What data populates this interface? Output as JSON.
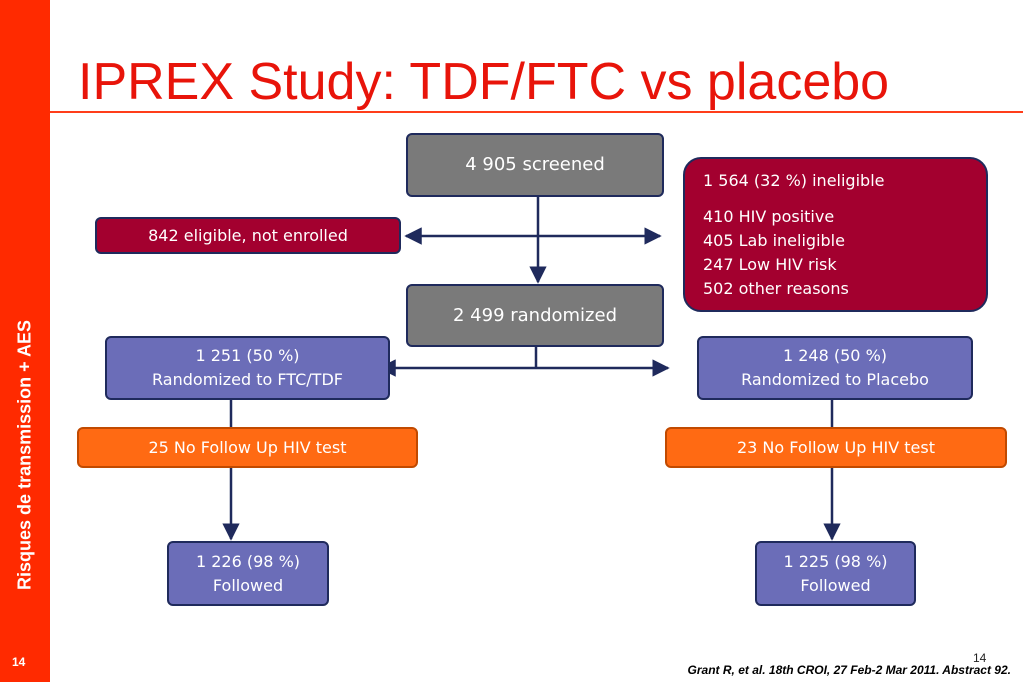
{
  "title": "IPREX Study: TDF/FTC vs placebo",
  "sidebar": {
    "text": "Risques de transmission + AES",
    "page": "14"
  },
  "nodes": [
    {
      "lines": [
        "4 905 screened"
      ]
    },
    {
      "lines": [
        "1 564 (32 %) ineligible",
        "410 HIV positive",
        "405 Lab ineligible",
        "247 Low HIV risk",
        "502 other reasons"
      ]
    },
    {
      "lines": [
        "842 eligible, not enrolled"
      ]
    },
    {
      "lines": [
        "2 499 randomized"
      ]
    },
    {
      "lines": [
        "1 251 (50 %)",
        "Randomized to FTC/TDF"
      ]
    },
    {
      "lines": [
        "1 248 (50 %)",
        "Randomized to Placebo"
      ]
    },
    {
      "lines": [
        "25 No Follow Up HIV test"
      ]
    },
    {
      "lines": [
        "23 No Follow Up HIV test"
      ]
    },
    {
      "lines": [
        "1 226 (98 %)",
        "Followed"
      ]
    },
    {
      "lines": [
        "1 225 (98 %)",
        "Followed"
      ]
    }
  ],
  "page_number": "14",
  "citation": "Grant R, et al. 18th CROI, 27 Feb-2 Mar 2011. Abstract 92."
}
